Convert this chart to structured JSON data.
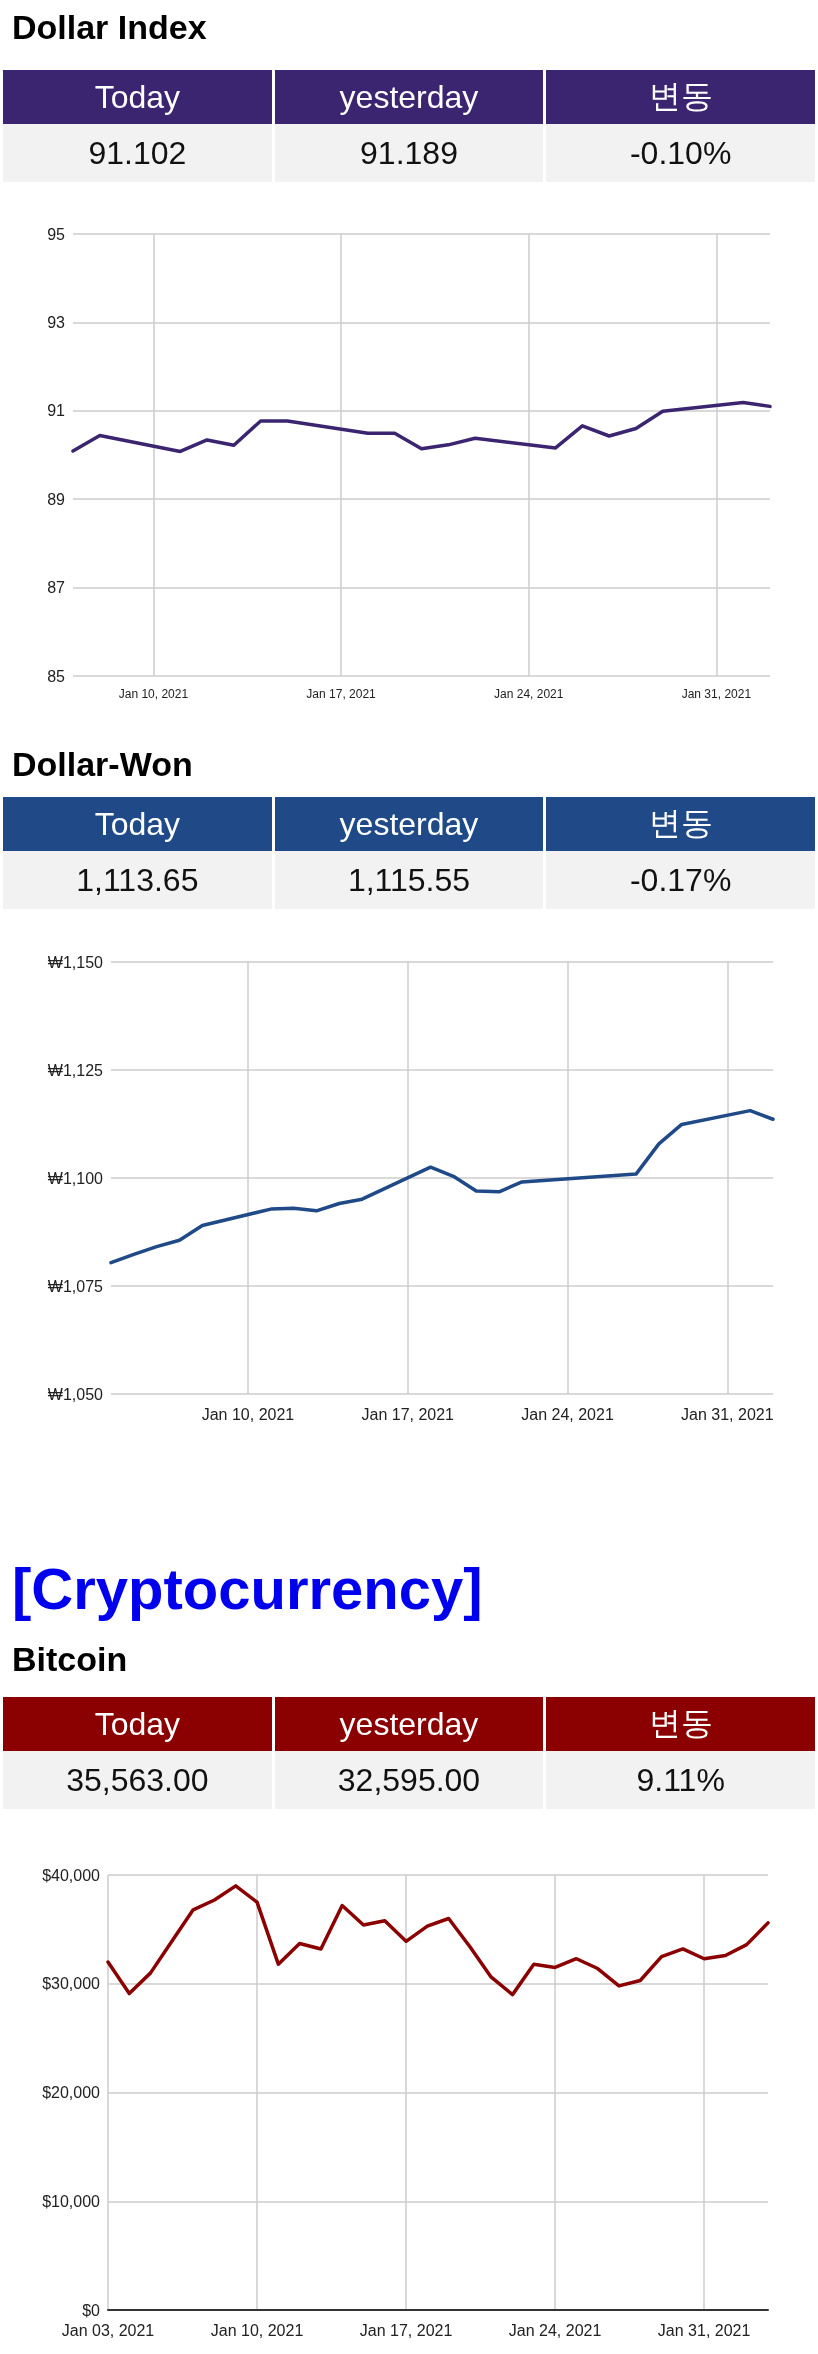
{
  "chart_data": [
    {
      "type": "line",
      "title": "Dollar Index",
      "annotations": [
        "Today",
        "yesterday",
        "변동",
        "91.102",
        "91.189",
        "-0.10%"
      ],
      "x": [
        "2021-01-07",
        "2021-01-08",
        "2021-01-11",
        "2021-01-12",
        "2021-01-13",
        "2021-01-14",
        "2021-01-15",
        "2021-01-18",
        "2021-01-19",
        "2021-01-20",
        "2021-01-21",
        "2021-01-22",
        "2021-01-25",
        "2021-01-26",
        "2021-01-27",
        "2021-01-28",
        "2021-01-29",
        "2021-02-01",
        "2021-02-02"
      ],
      "series": [
        {
          "color": "#3b2570",
          "values": [
            90.09,
            90.44,
            90.08,
            90.34,
            90.22,
            90.77,
            90.77,
            90.49,
            90.49,
            90.14,
            90.23,
            90.38,
            90.16,
            90.66,
            90.43,
            90.6,
            90.99,
            91.19,
            91.1
          ]
        }
      ],
      "xlim": [
        "2021-01-07",
        "2021-02-02"
      ],
      "xticks": [
        {
          "value": "2021-01-10",
          "label": "Jan 10, 2021"
        },
        {
          "value": "2021-01-17",
          "label": "Jan 17, 2021"
        },
        {
          "value": "2021-01-24",
          "label": "Jan 24, 2021"
        },
        {
          "value": "2021-01-31",
          "label": "Jan 31, 2021"
        }
      ],
      "ylim": [
        85,
        95
      ],
      "yticks": [
        85,
        87,
        89,
        91,
        93,
        95
      ],
      "grid": true,
      "line_style": "solid"
    },
    {
      "type": "line",
      "title": "Dollar-Won",
      "annotations": [
        "Today",
        "yesterday",
        "변동",
        "1,113.65",
        "1,115.55",
        "-0.17%"
      ],
      "x": [
        "2021-01-04",
        "2021-01-05",
        "2021-01-06",
        "2021-01-07",
        "2021-01-08",
        "2021-01-11",
        "2021-01-12",
        "2021-01-13",
        "2021-01-14",
        "2021-01-15",
        "2021-01-18",
        "2021-01-19",
        "2021-01-20",
        "2021-01-21",
        "2021-01-22",
        "2021-01-27",
        "2021-01-28",
        "2021-01-29",
        "2021-02-01",
        "2021-02-02"
      ],
      "series": [
        {
          "color": "#1f4a87",
          "values": [
            1080.4,
            1082.3,
            1084.1,
            1085.6,
            1089.0,
            1092.8,
            1093.0,
            1092.4,
            1094.1,
            1095.1,
            1102.5,
            1100.4,
            1097.0,
            1096.8,
            1099.1,
            1100.9,
            1107.9,
            1112.4,
            1115.6,
            1113.6
          ]
        }
      ],
      "xlim": [
        "2021-01-04",
        "2021-02-02"
      ],
      "xticks": [
        {
          "value": "2021-01-10",
          "label": "Jan 10, 2021"
        },
        {
          "value": "2021-01-17",
          "label": "Jan 17, 2021"
        },
        {
          "value": "2021-01-24",
          "label": "Jan 24, 2021"
        },
        {
          "value": "2021-01-31",
          "label": "Jan 31, 2021"
        }
      ],
      "ylim": [
        1050,
        1150
      ],
      "yticks": [
        {
          "value": 1050,
          "label": "₩1,050"
        },
        {
          "value": 1075,
          "label": "₩1,075"
        },
        {
          "value": 1100,
          "label": "₩1,100"
        },
        {
          "value": 1125,
          "label": "₩1,125"
        },
        {
          "value": 1150,
          "label": "₩1,150"
        }
      ],
      "grid": true,
      "line_style": "solid"
    },
    {
      "type": "line",
      "subtitle": "[Cryptocurrency]",
      "title": "Bitcoin",
      "annotations": [
        "Today",
        "yesterday",
        "변동",
        "35,563.00",
        "32,595.00",
        "9.11%"
      ],
      "x": [
        "2021-01-03",
        "2021-01-04",
        "2021-01-05",
        "2021-01-06",
        "2021-01-07",
        "2021-01-08",
        "2021-01-09",
        "2021-01-10",
        "2021-01-11",
        "2021-01-12",
        "2021-01-13",
        "2021-01-14",
        "2021-01-15",
        "2021-01-16",
        "2021-01-17",
        "2021-01-18",
        "2021-01-19",
        "2021-01-20",
        "2021-01-21",
        "2021-01-22",
        "2021-01-23",
        "2021-01-24",
        "2021-01-25",
        "2021-01-26",
        "2021-01-27",
        "2021-01-28",
        "2021-01-29",
        "2021-01-30",
        "2021-01-31",
        "2021-02-01",
        "2021-02-02",
        "2021-02-03"
      ],
      "series": [
        {
          "color": "#8b0000",
          "values": [
            32000,
            29100,
            31000,
            33900,
            36800,
            37700,
            39000,
            37500,
            31800,
            33700,
            33200,
            37200,
            35400,
            35800,
            33900,
            35300,
            36000,
            33400,
            30600,
            29000,
            31800,
            31500,
            32300,
            31400,
            29800,
            30300,
            32500,
            33200,
            32300,
            32600,
            33600,
            35600
          ]
        }
      ],
      "xlim": [
        "2021-01-03",
        "2021-02-03"
      ],
      "xticks": [
        {
          "value": "2021-01-03",
          "label": "Jan 03, 2021"
        },
        {
          "value": "2021-01-10",
          "label": "Jan 10, 2021"
        },
        {
          "value": "2021-01-17",
          "label": "Jan 17, 2021"
        },
        {
          "value": "2021-01-24",
          "label": "Jan 24, 2021"
        },
        {
          "value": "2021-01-31",
          "label": "Jan 31, 2021"
        }
      ],
      "ylim": [
        0,
        40000
      ],
      "yticks": [
        {
          "value": 0,
          "label": "$0"
        },
        {
          "value": 10000,
          "label": "$10,000"
        },
        {
          "value": 20000,
          "label": "$20,000"
        },
        {
          "value": 30000,
          "label": "$30,000"
        },
        {
          "value": 40000,
          "label": "$40,000"
        }
      ],
      "grid": true,
      "line_style": "solid"
    }
  ]
}
